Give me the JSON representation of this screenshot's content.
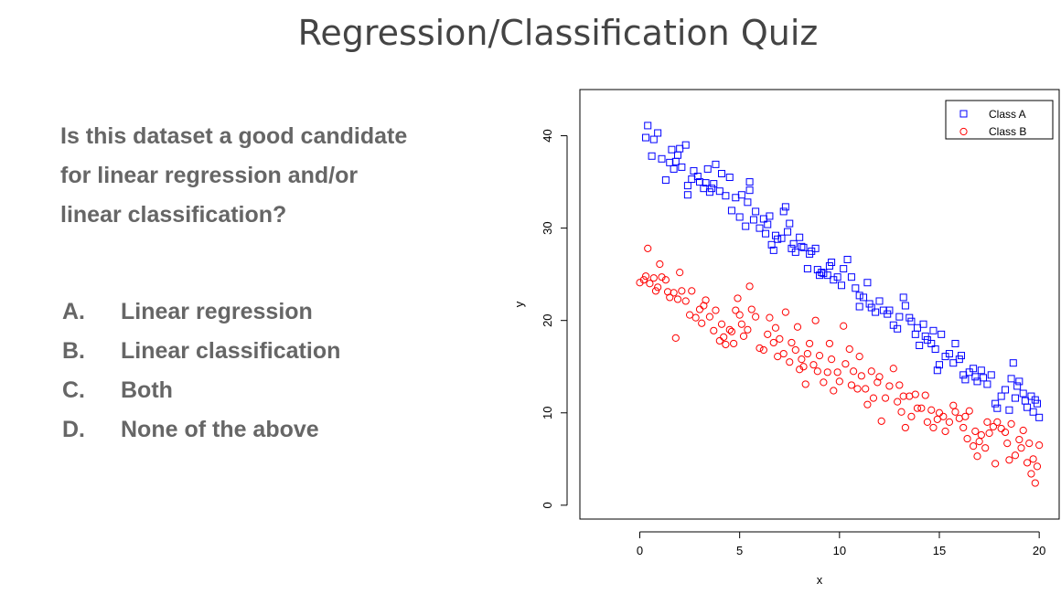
{
  "slide": {
    "title": "Regression/Classification Quiz",
    "question": "Is this dataset a good candidate for linear regression and/or linear classification?",
    "options": [
      {
        "letter": "A.",
        "text": "Linear regression"
      },
      {
        "letter": "B.",
        "text": "Linear classification"
      },
      {
        "letter": "C.",
        "text": "Both"
      },
      {
        "letter": "D.",
        "text": "None of the above"
      }
    ]
  },
  "chart_data": {
    "type": "scatter",
    "title": "",
    "xlabel": "x",
    "ylabel": "y",
    "xlim": [
      -3,
      21
    ],
    "ylim": [
      -1.5,
      45
    ],
    "xticks": [
      0,
      5,
      10,
      15,
      20
    ],
    "yticks": [
      0,
      10,
      20,
      30,
      40
    ],
    "grid": false,
    "legend_position": "top-right",
    "series": [
      {
        "name": "Class A",
        "marker": "square",
        "color": "#0000ff",
        "points": [
          [
            0.3,
            39.8
          ],
          [
            0.4,
            41.1
          ],
          [
            0.6,
            37.8
          ],
          [
            0.7,
            39.6
          ],
          [
            0.9,
            40.3
          ],
          [
            1.1,
            37.5
          ],
          [
            1.3,
            35.2
          ],
          [
            1.5,
            37.1
          ],
          [
            1.6,
            38.5
          ],
          [
            1.7,
            36.4
          ],
          [
            1.8,
            37.2
          ],
          [
            1.9,
            37.9
          ],
          [
            2.0,
            38.6
          ],
          [
            2.1,
            36.6
          ],
          [
            2.3,
            39.0
          ],
          [
            2.4,
            34.6
          ],
          [
            2.4,
            33.6
          ],
          [
            2.6,
            35.3
          ],
          [
            2.7,
            36.2
          ],
          [
            2.9,
            35.6
          ],
          [
            3.0,
            35.0
          ],
          [
            3.2,
            34.3
          ],
          [
            3.3,
            34.9
          ],
          [
            3.4,
            36.4
          ],
          [
            3.5,
            33.9
          ],
          [
            3.6,
            34.3
          ],
          [
            3.7,
            34.8
          ],
          [
            3.8,
            36.9
          ],
          [
            4.0,
            34.0
          ],
          [
            4.1,
            35.9
          ],
          [
            4.3,
            33.5
          ],
          [
            4.5,
            35.5
          ],
          [
            4.6,
            31.9
          ],
          [
            4.8,
            33.3
          ],
          [
            5.0,
            31.2
          ],
          [
            5.1,
            33.6
          ],
          [
            5.3,
            30.2
          ],
          [
            5.4,
            32.8
          ],
          [
            5.5,
            35.0
          ],
          [
            5.5,
            34.1
          ],
          [
            5.7,
            30.9
          ],
          [
            5.8,
            31.8
          ],
          [
            6.0,
            30.0
          ],
          [
            6.2,
            31.0
          ],
          [
            6.3,
            29.4
          ],
          [
            6.4,
            30.4
          ],
          [
            6.5,
            31.3
          ],
          [
            6.6,
            28.2
          ],
          [
            6.7,
            27.6
          ],
          [
            6.8,
            29.2
          ],
          [
            6.9,
            28.8
          ],
          [
            7.1,
            28.9
          ],
          [
            7.2,
            31.8
          ],
          [
            7.3,
            32.3
          ],
          [
            7.4,
            29.6
          ],
          [
            7.5,
            30.5
          ],
          [
            7.6,
            27.8
          ],
          [
            7.7,
            28.3
          ],
          [
            7.8,
            27.4
          ],
          [
            8.0,
            29.0
          ],
          [
            8.1,
            28.0
          ],
          [
            8.2,
            27.9
          ],
          [
            8.4,
            25.6
          ],
          [
            8.5,
            27.2
          ],
          [
            8.6,
            27.5
          ],
          [
            8.8,
            27.8
          ],
          [
            8.9,
            25.5
          ],
          [
            9.0,
            24.9
          ],
          [
            9.1,
            25.2
          ],
          [
            9.2,
            25.1
          ],
          [
            9.4,
            24.9
          ],
          [
            9.5,
            25.9
          ],
          [
            9.6,
            26.3
          ],
          [
            9.7,
            24.4
          ],
          [
            9.9,
            24.7
          ],
          [
            10.1,
            23.8
          ],
          [
            10.2,
            25.6
          ],
          [
            10.4,
            26.6
          ],
          [
            10.6,
            24.7
          ],
          [
            10.8,
            23.5
          ],
          [
            11.0,
            22.7
          ],
          [
            11.0,
            21.5
          ],
          [
            11.2,
            22.5
          ],
          [
            11.4,
            24.1
          ],
          [
            11.5,
            21.8
          ],
          [
            11.6,
            21.4
          ],
          [
            11.8,
            20.9
          ],
          [
            12.0,
            22.1
          ],
          [
            12.2,
            21.1
          ],
          [
            12.4,
            20.7
          ],
          [
            12.5,
            21.1
          ],
          [
            12.7,
            19.5
          ],
          [
            12.9,
            19.1
          ],
          [
            13.0,
            20.4
          ],
          [
            13.2,
            22.5
          ],
          [
            13.3,
            21.6
          ],
          [
            13.5,
            20.3
          ],
          [
            13.6,
            19.9
          ],
          [
            13.8,
            18.5
          ],
          [
            13.9,
            19.2
          ],
          [
            14.0,
            17.3
          ],
          [
            14.2,
            19.6
          ],
          [
            14.3,
            18.3
          ],
          [
            14.4,
            17.9
          ],
          [
            14.6,
            17.5
          ],
          [
            14.7,
            18.9
          ],
          [
            14.8,
            16.9
          ],
          [
            14.9,
            14.6
          ],
          [
            15.0,
            15.2
          ],
          [
            15.1,
            18.5
          ],
          [
            15.3,
            16.1
          ],
          [
            15.5,
            16.4
          ],
          [
            15.7,
            15.4
          ],
          [
            15.8,
            17.5
          ],
          [
            16.0,
            15.8
          ],
          [
            16.1,
            16.2
          ],
          [
            16.2,
            14.1
          ],
          [
            16.3,
            13.6
          ],
          [
            16.5,
            14.4
          ],
          [
            16.7,
            14.8
          ],
          [
            16.8,
            13.9
          ],
          [
            16.9,
            13.4
          ],
          [
            17.1,
            14.6
          ],
          [
            17.2,
            13.8
          ],
          [
            17.4,
            13.1
          ],
          [
            17.6,
            14.1
          ],
          [
            17.8,
            11.0
          ],
          [
            17.9,
            10.5
          ],
          [
            18.1,
            11.8
          ],
          [
            18.3,
            12.5
          ],
          [
            18.5,
            10.3
          ],
          [
            18.6,
            13.7
          ],
          [
            18.7,
            15.4
          ],
          [
            18.8,
            11.6
          ],
          [
            18.9,
            12.9
          ],
          [
            19.0,
            13.4
          ],
          [
            19.2,
            12.1
          ],
          [
            19.3,
            11.3
          ],
          [
            19.4,
            10.6
          ],
          [
            19.6,
            11.8
          ],
          [
            19.7,
            10.1
          ],
          [
            19.8,
            11.4
          ],
          [
            19.9,
            11.0
          ],
          [
            20.0,
            9.5
          ]
        ]
      },
      {
        "name": "Class B",
        "marker": "circle",
        "color": "#ff0000",
        "points": [
          [
            0.0,
            24.1
          ],
          [
            0.2,
            24.4
          ],
          [
            0.3,
            24.8
          ],
          [
            0.4,
            27.8
          ],
          [
            0.5,
            24.0
          ],
          [
            0.7,
            24.6
          ],
          [
            0.8,
            23.2
          ],
          [
            0.9,
            23.6
          ],
          [
            1.0,
            26.1
          ],
          [
            1.1,
            24.7
          ],
          [
            1.3,
            24.4
          ],
          [
            1.4,
            23.1
          ],
          [
            1.5,
            22.5
          ],
          [
            1.7,
            23.0
          ],
          [
            1.8,
            18.1
          ],
          [
            1.9,
            22.3
          ],
          [
            2.0,
            25.2
          ],
          [
            2.1,
            23.2
          ],
          [
            2.3,
            22.1
          ],
          [
            2.5,
            20.6
          ],
          [
            2.6,
            23.2
          ],
          [
            2.8,
            20.3
          ],
          [
            3.0,
            21.2
          ],
          [
            3.1,
            19.7
          ],
          [
            3.2,
            21.6
          ],
          [
            3.3,
            22.2
          ],
          [
            3.5,
            20.4
          ],
          [
            3.7,
            18.9
          ],
          [
            3.8,
            21.1
          ],
          [
            4.0,
            17.8
          ],
          [
            4.1,
            19.6
          ],
          [
            4.2,
            18.2
          ],
          [
            4.3,
            17.4
          ],
          [
            4.5,
            19.0
          ],
          [
            4.6,
            18.8
          ],
          [
            4.7,
            17.5
          ],
          [
            4.8,
            21.1
          ],
          [
            4.9,
            22.4
          ],
          [
            5.0,
            20.6
          ],
          [
            5.1,
            19.6
          ],
          [
            5.2,
            18.3
          ],
          [
            5.4,
            19.0
          ],
          [
            5.5,
            23.7
          ],
          [
            5.6,
            21.2
          ],
          [
            5.8,
            20.4
          ],
          [
            6.0,
            17.0
          ],
          [
            6.2,
            16.8
          ],
          [
            6.4,
            18.5
          ],
          [
            6.5,
            20.3
          ],
          [
            6.7,
            17.6
          ],
          [
            6.8,
            19.2
          ],
          [
            6.9,
            16.1
          ],
          [
            7.0,
            18.0
          ],
          [
            7.2,
            16.4
          ],
          [
            7.3,
            20.9
          ],
          [
            7.5,
            15.5
          ],
          [
            7.6,
            17.6
          ],
          [
            7.8,
            16.8
          ],
          [
            7.9,
            19.3
          ],
          [
            8.0,
            14.7
          ],
          [
            8.1,
            15.8
          ],
          [
            8.2,
            15.0
          ],
          [
            8.3,
            13.1
          ],
          [
            8.4,
            16.4
          ],
          [
            8.5,
            17.5
          ],
          [
            8.7,
            15.2
          ],
          [
            8.8,
            20.0
          ],
          [
            8.9,
            14.5
          ],
          [
            9.0,
            16.2
          ],
          [
            9.2,
            13.3
          ],
          [
            9.4,
            14.4
          ],
          [
            9.5,
            17.5
          ],
          [
            9.6,
            15.8
          ],
          [
            9.7,
            12.4
          ],
          [
            9.9,
            14.4
          ],
          [
            10.0,
            13.4
          ],
          [
            10.2,
            19.4
          ],
          [
            10.3,
            15.3
          ],
          [
            10.5,
            16.9
          ],
          [
            10.6,
            13.0
          ],
          [
            10.7,
            14.5
          ],
          [
            10.9,
            12.6
          ],
          [
            11.0,
            16.1
          ],
          [
            11.1,
            14.0
          ],
          [
            11.3,
            12.6
          ],
          [
            11.4,
            10.9
          ],
          [
            11.6,
            14.5
          ],
          [
            11.7,
            11.6
          ],
          [
            11.9,
            13.3
          ],
          [
            12.0,
            13.9
          ],
          [
            12.1,
            9.1
          ],
          [
            12.3,
            11.6
          ],
          [
            12.5,
            12.9
          ],
          [
            12.7,
            14.8
          ],
          [
            12.9,
            11.2
          ],
          [
            13.0,
            13.0
          ],
          [
            13.1,
            10.1
          ],
          [
            13.2,
            11.8
          ],
          [
            13.3,
            8.4
          ],
          [
            13.5,
            11.8
          ],
          [
            13.6,
            9.6
          ],
          [
            13.8,
            12.0
          ],
          [
            13.9,
            10.5
          ],
          [
            14.1,
            10.5
          ],
          [
            14.3,
            11.9
          ],
          [
            14.4,
            9.0
          ],
          [
            14.6,
            10.3
          ],
          [
            14.7,
            8.4
          ],
          [
            14.9,
            9.3
          ],
          [
            15.0,
            10.0
          ],
          [
            15.2,
            9.6
          ],
          [
            15.3,
            8.0
          ],
          [
            15.5,
            9.0
          ],
          [
            15.7,
            10.8
          ],
          [
            15.8,
            10.1
          ],
          [
            16.0,
            9.4
          ],
          [
            16.2,
            8.4
          ],
          [
            16.3,
            9.6
          ],
          [
            16.4,
            7.2
          ],
          [
            16.5,
            10.2
          ],
          [
            16.7,
            6.4
          ],
          [
            16.8,
            8.0
          ],
          [
            16.9,
            5.3
          ],
          [
            17.0,
            6.9
          ],
          [
            17.1,
            7.6
          ],
          [
            17.3,
            6.2
          ],
          [
            17.4,
            9.0
          ],
          [
            17.5,
            7.8
          ],
          [
            17.7,
            8.5
          ],
          [
            17.8,
            4.5
          ],
          [
            17.9,
            9.0
          ],
          [
            18.1,
            8.3
          ],
          [
            18.3,
            7.9
          ],
          [
            18.4,
            6.7
          ],
          [
            18.5,
            4.9
          ],
          [
            18.6,
            8.8
          ],
          [
            18.8,
            5.4
          ],
          [
            19.0,
            7.1
          ],
          [
            19.1,
            6.2
          ],
          [
            19.2,
            8.1
          ],
          [
            19.4,
            4.6
          ],
          [
            19.5,
            6.7
          ],
          [
            19.6,
            3.4
          ],
          [
            19.7,
            5.0
          ],
          [
            19.8,
            2.4
          ],
          [
            19.9,
            4.2
          ],
          [
            20.0,
            6.5
          ]
        ]
      }
    ]
  }
}
